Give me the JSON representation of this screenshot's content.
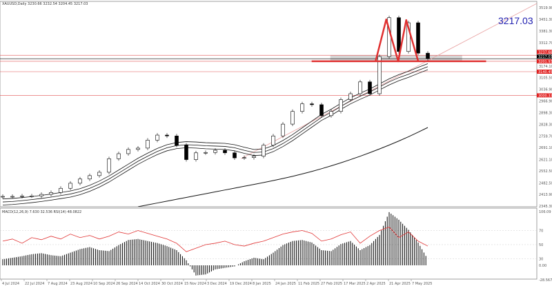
{
  "header": {
    "symbol_line": "XAUUSD,Daily  3230.66 3232.54 3204.45 3217.03"
  },
  "sub_header": {
    "indicator_line": "MACD(12,26,9) 7.630 32.536  RSI(14) 48.0822"
  },
  "annotation_price": "3217.03",
  "colors": {
    "up_candle": "#ffffff",
    "down_candle": "#000000",
    "level": "#e05050",
    "pattern": "#e03030",
    "trend": "#e8a0a0",
    "zone": "#cccccc",
    "annotation_text": "#2020b0",
    "rsi": "#e03030"
  },
  "chart_data": [
    {
      "type": "candlestick",
      "title": "XAUUSD, Daily",
      "ylim": [
        2345.3,
        3519.9
      ],
      "y_tick_labels": [
        "3519.90",
        "3451.30",
        "3381.30",
        "3312.70",
        "3174.10",
        "3105.50",
        "3036.90",
        "2966.90",
        "2898.30",
        "2828.30",
        "2759.70",
        "2691.10",
        "2621.10",
        "2552.50",
        "2482.50",
        "2413.90",
        "2345.30"
      ],
      "x_tick_labels": [
        "4 Jul 2024",
        "22 Jul 2024",
        "7 Aug 2024",
        "23 Aug 2024",
        "10 Sep 2024",
        "26 Sep 2024",
        "14 Oct 2024",
        "30 Oct 2024",
        "15 Nov 2024",
        "3 Dec 2024",
        "19 Dec 2024",
        "8 Jan 2025",
        "24 Jan 2025",
        "11 Feb 2025",
        "27 Feb 2025",
        "17 Mar 2025",
        "2 Apr 2025",
        "21 Apr 2025",
        "7 May 2025"
      ],
      "close": [
        2402,
        2402,
        2405,
        2405,
        2414,
        2425,
        2450,
        2480,
        2505,
        2525,
        2545,
        2625,
        2655,
        2680,
        2688,
        2735,
        2765,
        2760,
        2705,
        2620,
        2660,
        2662,
        2675,
        2660,
        2630,
        2632,
        2640,
        2705,
        2760,
        2830,
        2905,
        2950,
        2945,
        2880,
        2905,
        2975,
        3010,
        3080,
        3010,
        3230,
        3460,
        3260,
        3430,
        3250,
        3217
      ],
      "ma_channel_mid": [
        2369,
        2372,
        2377,
        2383,
        2390,
        2398,
        2407,
        2416,
        2430,
        2450,
        2475,
        2505,
        2540,
        2575,
        2610,
        2640,
        2668,
        2690,
        2703,
        2708,
        2706,
        2702,
        2700,
        2698,
        2690,
        2675,
        2662,
        2665,
        2685,
        2715,
        2750,
        2790,
        2830,
        2870,
        2900,
        2935,
        2968,
        2995,
        3020,
        3050,
        3080,
        3105,
        3125,
        3148,
        3170
      ],
      "ma_long": [
        null,
        null,
        null,
        null,
        null,
        null,
        null,
        null,
        null,
        null,
        null,
        null,
        null,
        null,
        2341,
        2352,
        2363,
        2374,
        2385,
        2396,
        2407,
        2418,
        2429,
        2440,
        2451,
        2462,
        2473,
        2484,
        2496,
        2508,
        2521,
        2535,
        2550,
        2566,
        2583,
        2601,
        2620,
        2640,
        2661,
        2683,
        2706,
        2730,
        2755,
        2782,
        2810
      ],
      "levels": [
        {
          "price": 3237.66,
          "label": "3237.66",
          "color": "#e05050"
        },
        {
          "price": 3217.03,
          "label": "3217.03",
          "color": "#000000"
        },
        {
          "price": 3201.93,
          "label": "3201.93",
          "color": "#e05050"
        },
        {
          "price": 3140.45,
          "label": "3140.45",
          "color": "#e05050"
        },
        {
          "price": 3000.33,
          "label": "3000.33",
          "color": "#e05050"
        }
      ],
      "neckline": {
        "price": 3202,
        "from": "2025-02-22",
        "to": "2025-07-03"
      },
      "zone": {
        "from": "2025-03-08",
        "to": "2025-06-15",
        "top": 3237.66,
        "bottom": 3202
      },
      "pattern_points": [
        {
          "date": "2025-04-11",
          "price": 3202
        },
        {
          "date": "2025-04-19",
          "price": 3450
        },
        {
          "date": "2025-04-28",
          "price": 3202
        },
        {
          "date": "2025-05-04",
          "price": 3446
        },
        {
          "date": "2025-05-13",
          "price": 3202
        }
      ],
      "trendline": {
        "from": {
          "date": "2024-12-31",
          "price": 2626
        },
        "to": {
          "date": "2025-08-10",
          "price": 3544
        }
      }
    },
    {
      "type": "bar+line",
      "title": "MACD(12,26,9) / RSI(14)",
      "y_tick_labels": [
        "106.09",
        "70",
        "50",
        "30",
        "0.00",
        "-28.567"
      ],
      "macd_ylim": [
        -28.567,
        106.09
      ],
      "macd_histogram": [
        12,
        15,
        18,
        22,
        24,
        20,
        18,
        25,
        32,
        36,
        30,
        28,
        40,
        50,
        52,
        48,
        44,
        38,
        30,
        10,
        -20,
        -18,
        -8,
        -5,
        -2,
        8,
        15,
        12,
        25,
        40,
        48,
        50,
        45,
        30,
        28,
        42,
        48,
        30,
        40,
        60,
        105,
        90,
        70,
        45,
        12
      ],
      "rsi": [
        55,
        58,
        52,
        60,
        57,
        62,
        58,
        65,
        60,
        63,
        58,
        62,
        68,
        65,
        70,
        66,
        62,
        58,
        52,
        40,
        45,
        50,
        52,
        55,
        50,
        48,
        52,
        55,
        60,
        65,
        68,
        70,
        66,
        55,
        58,
        64,
        68,
        52,
        62,
        70,
        75,
        60,
        68,
        55,
        48
      ],
      "rsi_levels": [
        70,
        50,
        30
      ]
    }
  ]
}
